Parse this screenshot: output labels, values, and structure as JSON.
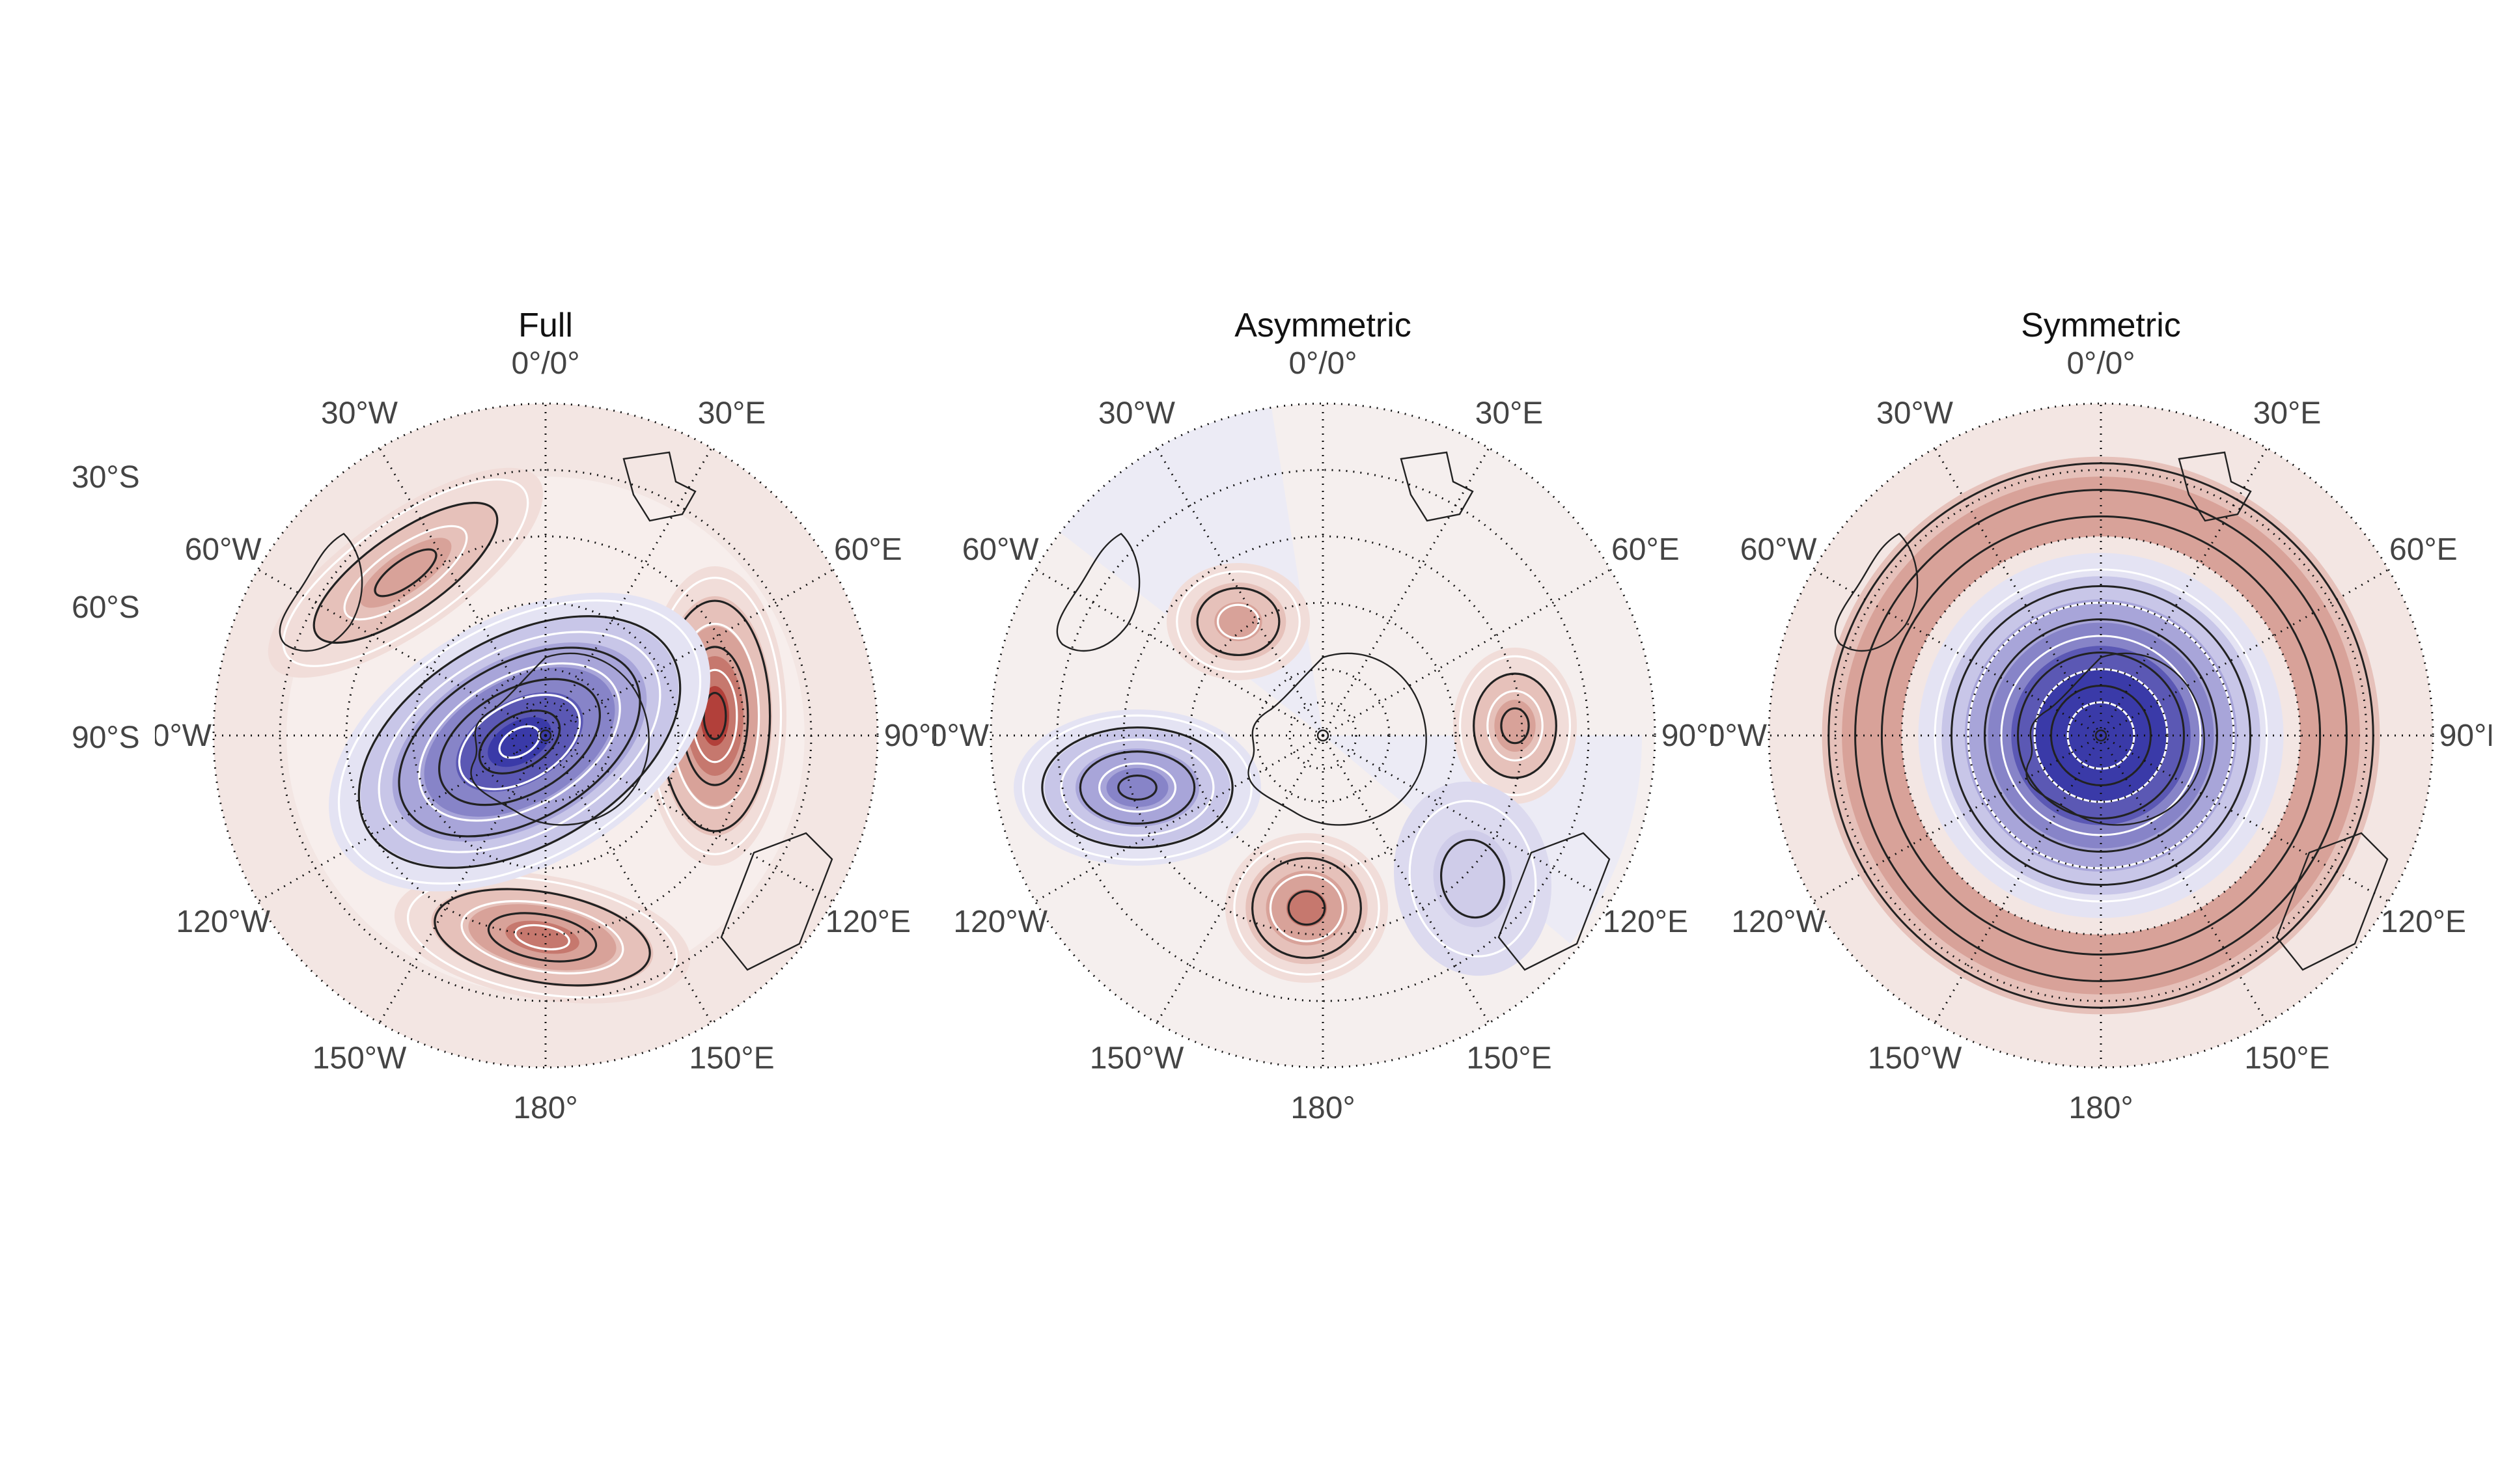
{
  "figure": {
    "panels": [
      {
        "id": "full",
        "title": "Full"
      },
      {
        "id": "asymmetric",
        "title": "Asymmetric"
      },
      {
        "id": "symmetric",
        "title": "Symmetric"
      }
    ],
    "lat_labels": [
      "30°S",
      "60°S",
      "90°S"
    ],
    "lon_labels": [
      {
        "lon": 0,
        "text": "0°/0°"
      },
      {
        "lon": 30,
        "text": "30°E"
      },
      {
        "lon": 60,
        "text": "60°E"
      },
      {
        "lon": 90,
        "text": "90°E"
      },
      {
        "lon": 120,
        "text": "120°E"
      },
      {
        "lon": 150,
        "text": "150°E"
      },
      {
        "lon": 180,
        "text": "180°"
      },
      {
        "lon": -150,
        "text": "150°W"
      },
      {
        "lon": -120,
        "text": "120°W"
      },
      {
        "lon": -90,
        "text": "90°W"
      },
      {
        "lon": -60,
        "text": "60°W"
      },
      {
        "lon": -30,
        "text": "30°W"
      }
    ],
    "colors": {
      "positive": "#b2403a",
      "negative": "#3a3aa8",
      "positive_light": "#f3e6e3",
      "negative_light": "#ecebf5",
      "contour": "#222222",
      "grid": "#111111",
      "label": "#444444"
    },
    "map_extent": {
      "outer_lat": -20,
      "pole_lat": -90,
      "projection": "south-polar-stereographic"
    }
  }
}
